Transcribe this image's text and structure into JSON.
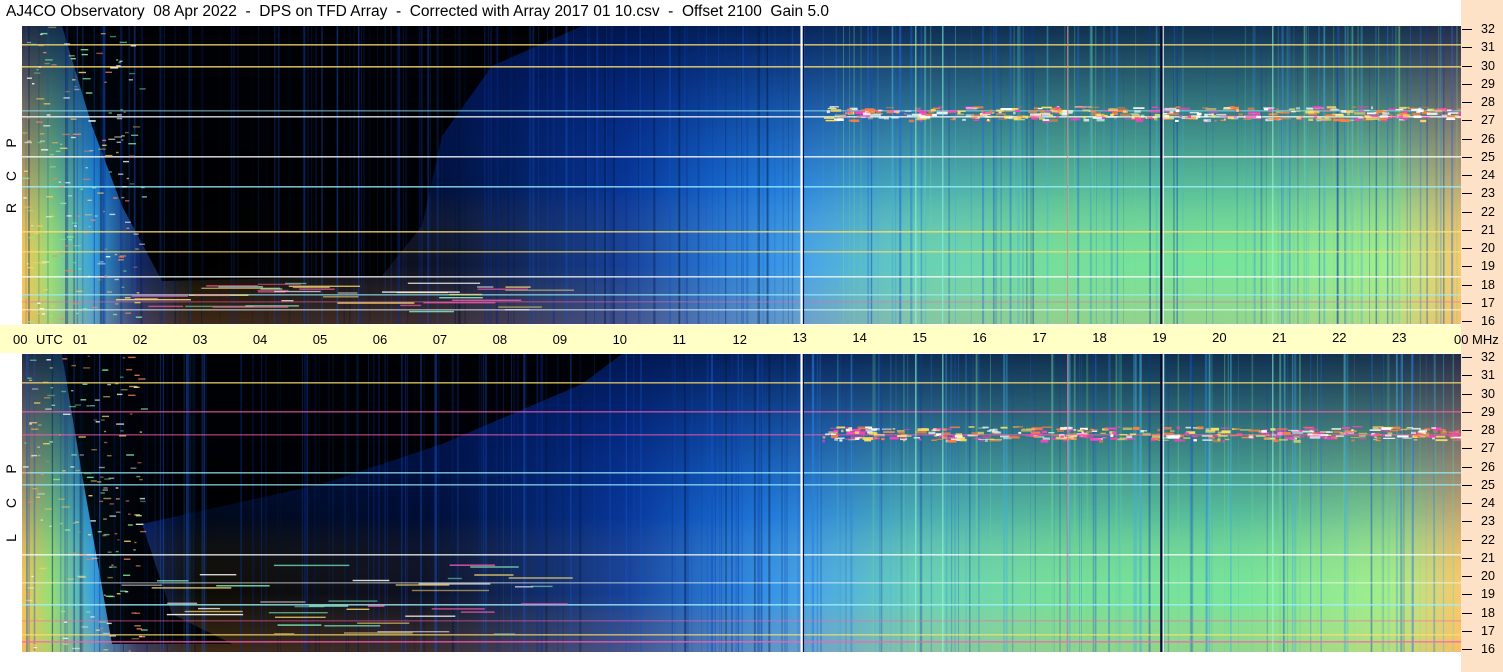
{
  "title": "AJ4CO Observatory  08 Apr 2022  -  DPS on TFD Array  -  Corrected with Array 2017 01 10.csv  -  Offset 2100  Gain 5.0",
  "panels": {
    "top_label": [
      "R",
      "C",
      "P"
    ],
    "bottom_label": [
      "L",
      "C",
      "P"
    ]
  },
  "chart_data": {
    "type": "heatmap",
    "title": "AJ4CO Observatory  08 Apr 2022  -  DPS on TFD Array  -  Corrected with Array 2017 01 10.csv  -  Offset 2100  Gain 5.0",
    "x_axis": {
      "unit_label": "UTC",
      "ticks": [
        "00",
        "01",
        "02",
        "03",
        "04",
        "05",
        "06",
        "07",
        "08",
        "09",
        "10",
        "11",
        "12",
        "13",
        "14",
        "15",
        "16",
        "17",
        "18",
        "19",
        "20",
        "21",
        "22",
        "23",
        "00"
      ],
      "range_hours": [
        0,
        24
      ]
    },
    "y_axis": {
      "unit_label": "MHz",
      "ticks": [
        32,
        31,
        30,
        29,
        28,
        27,
        26,
        25,
        24,
        23,
        22,
        21,
        20,
        19,
        18,
        17,
        16
      ],
      "range_mhz": [
        16,
        32
      ]
    },
    "panels": [
      {
        "name": "RCP",
        "labels": [
          "R",
          "C",
          "P"
        ]
      },
      {
        "name": "LCP",
        "labels": [
          "L",
          "C",
          "P"
        ]
      }
    ],
    "features": {
      "night_dark_start_hours": 1.2,
      "night_dark_end_hours": 11.3,
      "sweep_lines_hours": [
        13.0,
        19.0
      ],
      "strong_band_mhz": [
        27.0,
        27.6
      ],
      "interference_lines_mhz": [
        25.0,
        21.0,
        17.6,
        17.0
      ]
    }
  }
}
